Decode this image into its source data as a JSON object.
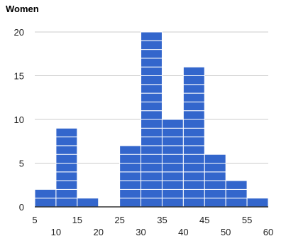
{
  "chart_data": {
    "type": "bar",
    "title": "Women",
    "xlabel": "",
    "ylabel": "",
    "bin_width": 5,
    "xlim": [
      5,
      60
    ],
    "ylim": [
      0,
      20
    ],
    "grid": true,
    "legend": "none",
    "bins": [
      {
        "x0": 5,
        "x1": 10,
        "count": 2
      },
      {
        "x0": 10,
        "x1": 15,
        "count": 9
      },
      {
        "x0": 15,
        "x1": 20,
        "count": 1
      },
      {
        "x0": 20,
        "x1": 25,
        "count": 0
      },
      {
        "x0": 25,
        "x1": 30,
        "count": 7
      },
      {
        "x0": 30,
        "x1": 35,
        "count": 20
      },
      {
        "x0": 35,
        "x1": 40,
        "count": 10
      },
      {
        "x0": 40,
        "x1": 45,
        "count": 16
      },
      {
        "x0": 45,
        "x1": 50,
        "count": 6
      },
      {
        "x0": 50,
        "x1": 55,
        "count": 3
      },
      {
        "x0": 55,
        "x1": 60,
        "count": 1
      }
    ],
    "x_ticks_upper": [
      "5",
      "15",
      "25",
      "35",
      "45",
      "55"
    ],
    "x_ticks_lower": [
      "10",
      "20",
      "30",
      "40",
      "50",
      "60"
    ],
    "y_ticks": [
      "0",
      "5",
      "10",
      "15",
      "20"
    ],
    "colors": {
      "bar": "#3366cc",
      "bar_separator": "#ffffff",
      "grid": "#cccccc",
      "baseline": "#333333"
    }
  }
}
